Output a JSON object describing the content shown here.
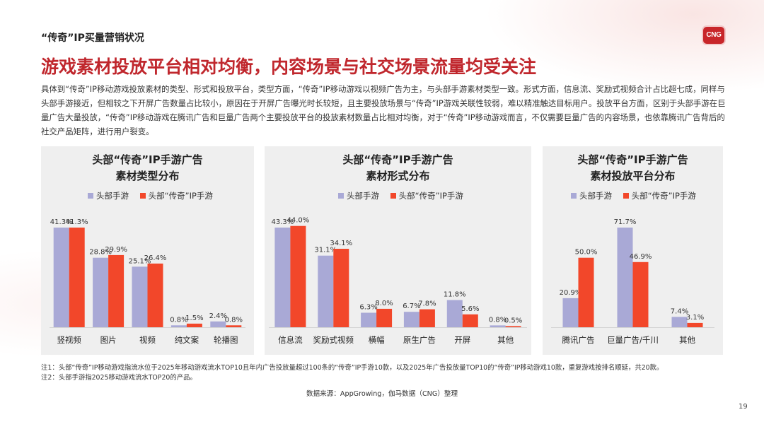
{
  "header": {
    "section_label": "“传奇”IP买量营销状况",
    "title": "游戏素材投放平台相对均衡，内容场景与社交场景流量均受关注",
    "logo_text": "CNG",
    "intro": "具体到“传奇”IP移动游戏投放素材的类型、形式和投放平台，类型方面，“传奇”IP移动游戏以视频广告为主，与头部手游素材类型一致。形式方面，信息流、奖励式视频合计占比超七成，同样与头部手游接近，但相较之下开屏广告数量占比较小，原因在于开屏广告曝光时长较短，且主要投放场景与“传奇”IP游戏关联性较弱，难以精准触达目标用户。投放平台方面，区别于头部手游在巨量广告大量投放，“传奇”IP移动游戏在腾讯广告和巨量广告两个主要投放平台的投放素材数量占比相对均衡，对于“传奇”IP移动游戏而言，不仅需要巨量广告的内容场景，也依靠腾讯广告背后的社交产品矩阵，进行用户裂变。"
  },
  "colors": {
    "series_a": "#a9a9d6",
    "series_b": "#f2472a",
    "title": "#c0272d"
  },
  "chart_data": [
    {
      "type": "bar",
      "title_line1": "头部“传奇”IP手游广告",
      "title_line2": "素材类型分布",
      "categories": [
        "竖视频",
        "图片",
        "视频",
        "纯文案",
        "轮播图"
      ],
      "series": [
        {
          "name": "头部手游",
          "values": [
            41.3,
            28.8,
            25.1,
            0.8,
            2.4
          ],
          "labels": [
            "41.3%",
            "28.8%",
            "25.1%",
            "0.8%",
            "2.4%"
          ]
        },
        {
          "name": "头部“传奇”IP手游",
          "values": [
            41.3,
            29.9,
            26.4,
            1.5,
            0.8
          ],
          "labels": [
            "41.3%",
            "29.9%",
            "26.4%",
            "1.5%",
            "0.8%"
          ]
        }
      ]
    },
    {
      "type": "bar",
      "title_line1": "头部“传奇”IP手游广告",
      "title_line2": "素材形式分布",
      "categories": [
        "信息流",
        "奖励式视频",
        "横幅",
        "原生广告",
        "开屏",
        "其他"
      ],
      "series": [
        {
          "name": "头部手游",
          "values": [
            43.3,
            31.1,
            6.3,
            6.7,
            11.8,
            0.8
          ],
          "labels": [
            "43.3%",
            "31.1%",
            "6.3%",
            "6.7%",
            "11.8%",
            "0.8%"
          ]
        },
        {
          "name": "头部“传奇”IP手游",
          "values": [
            44.0,
            34.1,
            8.0,
            7.8,
            5.6,
            0.5
          ],
          "labels": [
            "44.0%",
            "34.1%",
            "8.0%",
            "7.8%",
            "5.6%",
            "0.5%"
          ]
        }
      ]
    },
    {
      "type": "bar",
      "title_line1": "头部“传奇”IP手游广告",
      "title_line2": "素材投放平台分布",
      "categories": [
        "腾讯广告",
        "巨量广告/千川",
        "其他"
      ],
      "series": [
        {
          "name": "头部手游",
          "values": [
            20.9,
            71.7,
            7.4
          ],
          "labels": [
            "20.9%",
            "71.7%",
            "7.4%"
          ]
        },
        {
          "name": "头部“传奇”IP手游",
          "values": [
            50.0,
            46.9,
            3.1
          ],
          "labels": [
            "50.0%",
            "46.9%",
            "3.1%"
          ]
        }
      ]
    }
  ],
  "notes": {
    "note1": "注1：头部“传奇”IP移动游戏指流水位于2025年移动游戏流水TOP10且年内广告投放量超过100条的“传奇”IP手游10款，以及2025年广告投放量TOP10的“传奇”IP移动游戏10款，重复游戏按排名顺延，共20款。",
    "note2": "注2：头部手游指2025移动游戏流水TOP20的产品。"
  },
  "source": "数据来源：AppGrowing，伽马数据（CNG）整理",
  "page_number": "19"
}
